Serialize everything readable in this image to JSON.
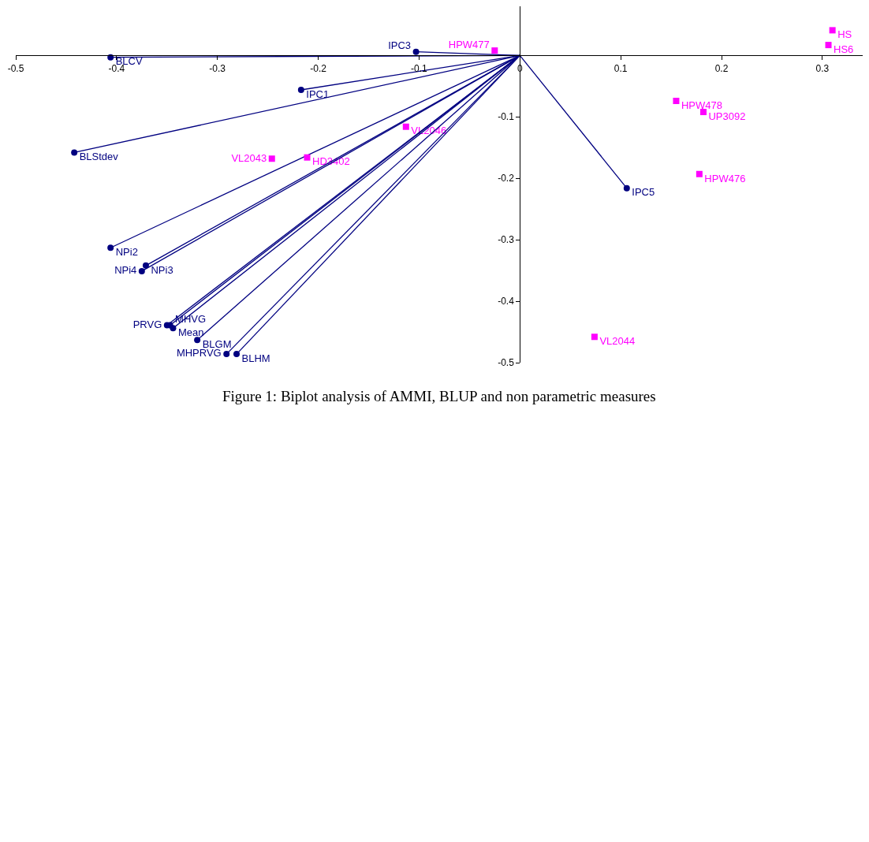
{
  "chart_data": {
    "type": "scatter",
    "annotations": [
      "Figure 1: Biplot analysis of AMMI, BLUP and non parametric measures"
    ],
    "xlim": [
      -0.5,
      0.34
    ],
    "ylim": [
      -0.5,
      0.08
    ],
    "xticks": [
      -0.5,
      -0.4,
      -0.3,
      -0.2,
      -0.1,
      0,
      0.1,
      0.2,
      0.3
    ],
    "yticks": [
      -0.5,
      -0.4,
      -0.3,
      -0.2,
      -0.1
    ],
    "grid": false,
    "series": [
      {
        "type": "line",
        "color": "#000080",
        "marker": "none",
        "x": [
          0,
          -0.406
        ],
        "values": [
          0,
          -0.003
        ]
      },
      {
        "type": "line",
        "color": "#000080",
        "marker": "none",
        "x": [
          0,
          -0.103
        ],
        "values": [
          0,
          0.006
        ]
      },
      {
        "type": "line",
        "color": "#000080",
        "marker": "none",
        "x": [
          0,
          -0.217
        ],
        "values": [
          0,
          -0.056
        ]
      },
      {
        "type": "line",
        "color": "#000080",
        "marker": "none",
        "x": [
          0,
          -0.442
        ],
        "values": [
          0,
          -0.158
        ]
      },
      {
        "type": "line",
        "color": "#000080",
        "marker": "none",
        "x": [
          0,
          0.106
        ],
        "values": [
          0,
          -0.216
        ]
      },
      {
        "type": "line",
        "color": "#000080",
        "marker": "none",
        "x": [
          0,
          -0.406
        ],
        "values": [
          0,
          -0.313
        ]
      },
      {
        "type": "line",
        "color": "#000080",
        "marker": "none",
        "x": [
          0,
          -0.371
        ],
        "values": [
          0,
          -0.342
        ]
      },
      {
        "type": "line",
        "color": "#000080",
        "marker": "none",
        "x": [
          0,
          -0.375
        ],
        "values": [
          0,
          -0.351
        ]
      },
      {
        "type": "line",
        "color": "#000080",
        "marker": "none",
        "x": [
          0,
          -0.35
        ],
        "values": [
          0,
          -0.439
        ]
      },
      {
        "type": "line",
        "color": "#000080",
        "marker": "none",
        "x": [
          0,
          -0.347
        ],
        "values": [
          0,
          -0.439
        ]
      },
      {
        "type": "line",
        "color": "#000080",
        "marker": "none",
        "x": [
          0,
          -0.344
        ],
        "values": [
          0,
          -0.444
        ]
      },
      {
        "type": "line",
        "color": "#000080",
        "marker": "none",
        "x": [
          0,
          -0.32
        ],
        "values": [
          0,
          -0.463
        ]
      },
      {
        "type": "line",
        "color": "#000080",
        "marker": "none",
        "x": [
          0,
          -0.291
        ],
        "values": [
          0,
          -0.486
        ]
      },
      {
        "type": "line",
        "color": "#000080",
        "marker": "none",
        "x": [
          0,
          -0.281
        ],
        "values": [
          0,
          -0.486
        ]
      },
      {
        "type": "scatter",
        "color": "#000080",
        "marker": "circle",
        "x": [
          -0.406,
          -0.103,
          -0.217,
          -0.442,
          0.106,
          -0.406,
          -0.371,
          -0.375,
          -0.35,
          -0.347,
          -0.344,
          -0.32,
          -0.291,
          -0.281
        ],
        "values": [
          -0.003,
          0.006,
          -0.056,
          -0.158,
          -0.216,
          -0.313,
          -0.342,
          -0.351,
          -0.439,
          -0.439,
          -0.444,
          -0.463,
          -0.486,
          -0.486
        ],
        "value_labels": [
          "BLCV",
          "IPC3",
          "IPC1",
          "BLStdev",
          "IPC5",
          "NPi2",
          "NPi3",
          "NPi4",
          "PRVG",
          "MHVG",
          "Mean",
          "BLGM",
          "MHPRVG",
          "BLHM"
        ]
      },
      {
        "type": "scatter",
        "color": "#ff00ff",
        "marker": "square",
        "x": [
          -0.025,
          -0.113,
          -0.246,
          -0.211,
          0.155,
          0.182,
          0.178,
          0.074,
          0.31,
          0.306
        ],
        "values": [
          0.008,
          -0.116,
          -0.168,
          -0.166,
          -0.074,
          -0.092,
          -0.193,
          -0.458,
          0.041,
          0.017
        ],
        "value_labels": [
          "HPW477",
          "VL2046",
          "VL2043",
          "HD3402",
          "HPW478",
          "UP3092",
          "HPW476",
          "VL2044",
          "HS",
          "HS6"
        ]
      }
    ]
  }
}
